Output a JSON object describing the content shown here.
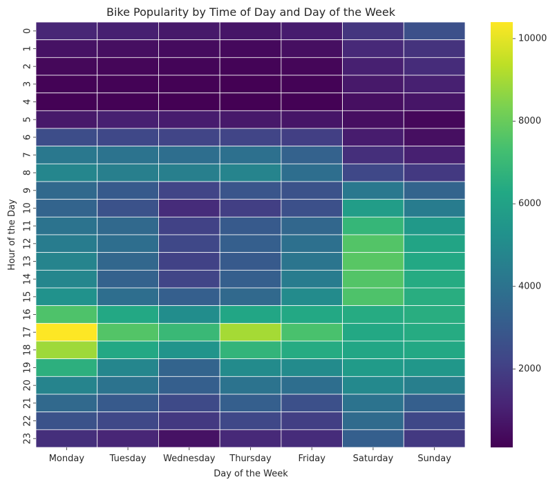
{
  "chart_data": {
    "type": "heatmap",
    "title": "Bike Popularity by Time of Day and Day of the Week",
    "xlabel": "Day of the Week",
    "ylabel": "Hour of the Day",
    "x_categories": [
      "Monday",
      "Tuesday",
      "Wednesday",
      "Thursday",
      "Friday",
      "Saturday",
      "Sunday"
    ],
    "y_categories": [
      "0",
      "1",
      "2",
      "3",
      "4",
      "5",
      "6",
      "7",
      "8",
      "9",
      "10",
      "11",
      "12",
      "13",
      "14",
      "15",
      "16",
      "17",
      "18",
      "19",
      "20",
      "21",
      "22",
      "23"
    ],
    "values": [
      [
        1200,
        1000,
        800,
        700,
        900,
        1700,
        2600
      ],
      [
        600,
        500,
        400,
        350,
        500,
        1300,
        1600
      ],
      [
        300,
        250,
        220,
        200,
        250,
        1000,
        1400
      ],
      [
        150,
        150,
        120,
        100,
        150,
        800,
        1000
      ],
      [
        120,
        120,
        100,
        100,
        120,
        500,
        700
      ],
      [
        800,
        1000,
        900,
        800,
        700,
        500,
        300
      ],
      [
        2500,
        2300,
        2200,
        2200,
        2000,
        900,
        500
      ],
      [
        4200,
        4000,
        3800,
        3900,
        3300,
        1500,
        1000
      ],
      [
        4800,
        4500,
        4500,
        4700,
        3800,
        2300,
        1800
      ],
      [
        3600,
        3000,
        2200,
        2800,
        2700,
        4200,
        3400
      ],
      [
        3400,
        2700,
        1400,
        2000,
        2600,
        5800,
        4400
      ],
      [
        4000,
        3600,
        2100,
        3000,
        3500,
        6900,
        5600
      ],
      [
        4400,
        3800,
        2300,
        3200,
        3900,
        7600,
        6100
      ],
      [
        4700,
        3500,
        2100,
        3000,
        4100,
        7700,
        6300
      ],
      [
        4800,
        3300,
        2200,
        3200,
        4400,
        7600,
        6400
      ],
      [
        5300,
        3800,
        3200,
        3600,
        5000,
        7500,
        6500
      ],
      [
        7500,
        6300,
        5100,
        6200,
        6300,
        6400,
        6500
      ],
      [
        10400,
        7600,
        7000,
        9000,
        7400,
        6300,
        6400
      ],
      [
        8900,
        6300,
        5400,
        6800,
        6400,
        6200,
        6300
      ],
      [
        6600,
        4800,
        3400,
        5000,
        5000,
        5700,
        5500
      ],
      [
        4700,
        4000,
        3200,
        4000,
        3800,
        4900,
        4500
      ],
      [
        3600,
        3000,
        2400,
        3200,
        2600,
        4000,
        3200
      ],
      [
        2700,
        2300,
        1800,
        2300,
        2000,
        3700,
        2300
      ],
      [
        1500,
        1200,
        600,
        1300,
        1400,
        3200,
        1800
      ]
    ],
    "color_range": [
      100,
      10400
    ],
    "colormap": "viridis",
    "colorbar_ticks": [
      2000,
      4000,
      6000,
      8000,
      10000
    ],
    "colorbar_tick_labels": [
      "2000",
      "4000",
      "6000",
      "8000",
      "10000"
    ],
    "cell_line_color": "#ffffff"
  }
}
